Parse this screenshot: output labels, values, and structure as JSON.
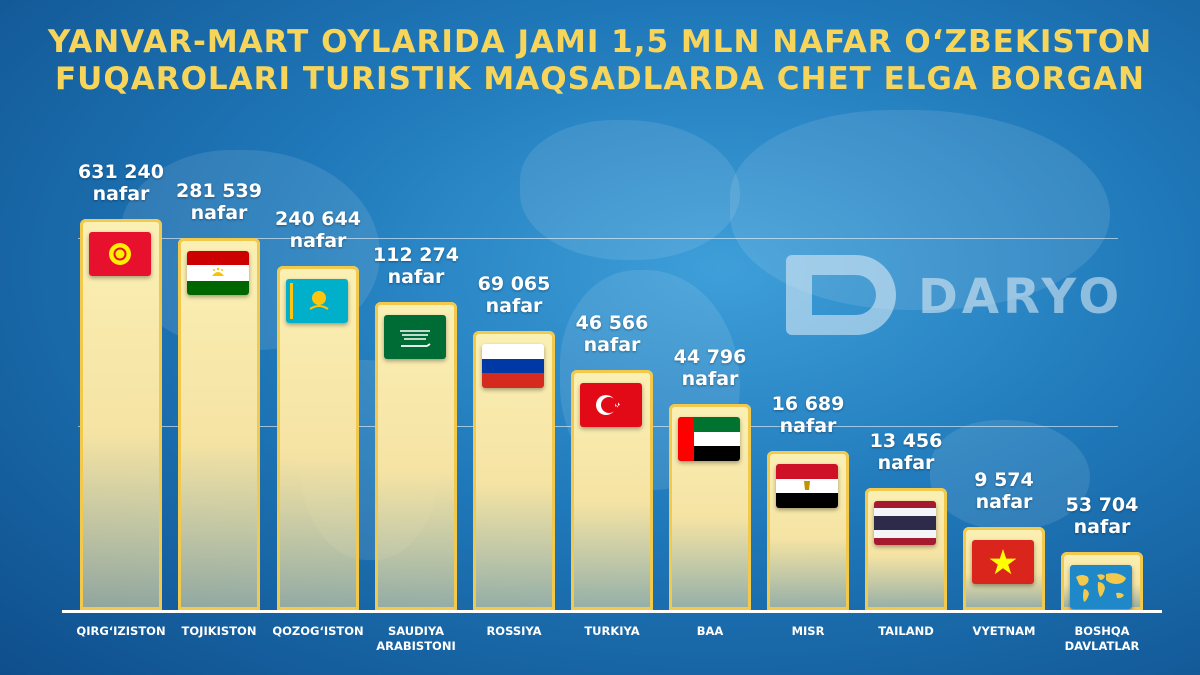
{
  "title_lines": [
    "YANVAR-MART OYLARIDA JAMI 1,5 MLN NAFAR O‘ZBEKISTON",
    "FUQAROLARI TURISTIK MAQSADLARDA CHET ELGA BORGAN"
  ],
  "logo": {
    "text": "DARYO"
  },
  "chart_data": {
    "type": "bar",
    "title": "YANVAR-MART OYLARIDA JAMI 1,5 MLN NAFAR O‘ZBEKISTON FUQAROLARI TURISTIK MAQSADLARDA CHET ELGA BORGAN",
    "categories": [
      "QIRG‘IZISTON",
      "TOJIKISTON",
      "QOZOG‘ISTON",
      "SAUDIYA ARABISTONI",
      "ROSSIYA",
      "TURKIYA",
      "BAA",
      "MISR",
      "TAILAND",
      "VYETNAM",
      "BOSHQA DAVLATLAR"
    ],
    "values": [
      631240,
      281539,
      240644,
      112274,
      69065,
      46566,
      44796,
      16689,
      13456,
      9574,
      53704
    ],
    "value_labels": [
      "631 240",
      "281 539",
      "240 644",
      "112 274",
      "69 065",
      "46 566",
      "44 796",
      "16 689",
      "13 456",
      "9 574",
      "53 704"
    ],
    "unit": "nafar",
    "flags": [
      "kyrgyzstan",
      "tajikistan",
      "kazakhstan",
      "saudi-arabia",
      "russia",
      "turkey",
      "uae",
      "egypt",
      "thailand",
      "vietnam",
      "world-map"
    ],
    "xlabel": "",
    "ylabel": "",
    "note": "Bar heights are decorative descending steps, not proportional to values"
  },
  "colors": {
    "title": "#f7d55a",
    "bar_fill": "#f5e3a3",
    "bar_border": "#f2c94c",
    "background": "#1f78b9"
  }
}
